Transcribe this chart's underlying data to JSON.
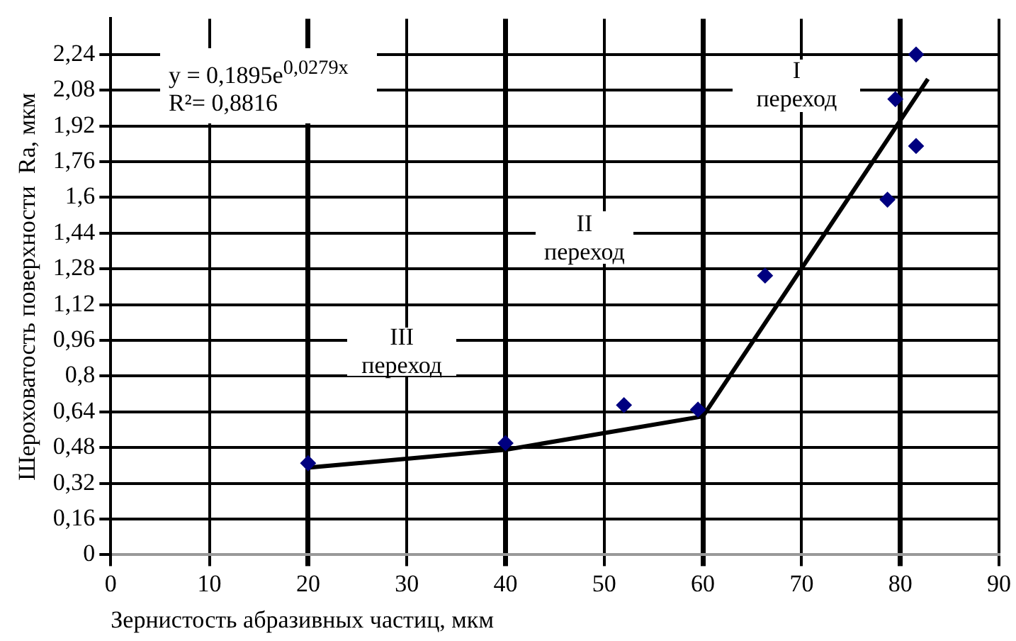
{
  "chart_data": {
    "type": "scatter",
    "xlabel": "Зернистость абразивных частиц, мкм",
    "ylabel": "Шероховатость поверхности  Ra, мкм",
    "xlim": [
      0,
      90
    ],
    "xticks": [
      0,
      10,
      20,
      30,
      40,
      50,
      60,
      70,
      80,
      90
    ],
    "ylim": [
      0,
      2.4
    ],
    "yticks": [
      0,
      {
        "value": 0.16,
        "label": "0,16"
      },
      {
        "value": 0.32,
        "label": "0,32"
      },
      {
        "value": 0.48,
        "label": "0,48"
      },
      {
        "value": 0.64,
        "label": "0,64"
      },
      {
        "value": 0.8,
        "label": "0,8"
      },
      {
        "value": 0.96,
        "label": "0,96"
      },
      {
        "value": 1.12,
        "label": "1,12"
      },
      {
        "value": 1.28,
        "label": "1,28"
      },
      {
        "value": 1.44,
        "label": "1,44"
      },
      {
        "value": 1.6,
        "label": "1,6"
      },
      {
        "value": 1.76,
        "label": "1,76"
      },
      {
        "value": 1.92,
        "label": "1,92"
      },
      {
        "value": 2.08,
        "label": "2,08"
      },
      {
        "value": 2.24,
        "label": "2,24"
      }
    ],
    "grid": true,
    "legend": false,
    "series": [
      {
        "color": "#000080",
        "marker": "diamond",
        "x": [
          20,
          40,
          52,
          59.5,
          66.3,
          78.7,
          79.5,
          81.6,
          81.6
        ],
        "values": [
          0.41,
          0.5,
          0.67,
          0.65,
          1.25,
          1.59,
          2.04,
          2.24,
          1.83
        ]
      },
      {
        "type": "line",
        "color": "#000000",
        "marker": "none",
        "line_style": "solid",
        "x": [
          20,
          40,
          60,
          82.8
        ],
        "values": [
          0.39,
          0.47,
          0.62,
          2.13
        ]
      }
    ],
    "annotations": [
      "y = 0,1895e$^{0,0279x}$\nR²= 0,8816",
      "I\nпереход",
      "II\nпереход",
      "III\nпереход"
    ]
  }
}
